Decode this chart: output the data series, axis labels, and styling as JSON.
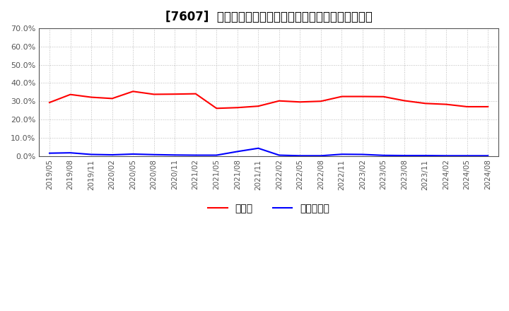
{
  "title": "[7607]  現預金、有利子負債の総資産に対する比率の推移",
  "title_fontsize": 12,
  "legend_labels": [
    "現預金",
    "有利子負債"
  ],
  "line_colors": [
    "#ff0000",
    "#0000ff"
  ],
  "ylim": [
    0.0,
    0.7
  ],
  "yticks": [
    0.0,
    0.1,
    0.2,
    0.3,
    0.4,
    0.5,
    0.6,
    0.7
  ],
  "background_color": "#ffffff",
  "plot_bg_color": "#ffffff",
  "grid_color": "#bbbbbb",
  "dates": [
    "2019/05",
    "2019/08",
    "2019/11",
    "2020/02",
    "2020/05",
    "2020/08",
    "2020/11",
    "2021/02",
    "2021/05",
    "2021/08",
    "2021/11",
    "2022/02",
    "2022/05",
    "2022/08",
    "2022/11",
    "2023/02",
    "2023/05",
    "2023/08",
    "2023/11",
    "2024/02",
    "2024/05",
    "2024/08"
  ],
  "cash_ratio": [
    0.293,
    0.337,
    0.322,
    0.315,
    0.354,
    0.338,
    0.339,
    0.341,
    0.261,
    0.265,
    0.273,
    0.302,
    0.296,
    0.3,
    0.326,
    0.326,
    0.325,
    0.303,
    0.288,
    0.283,
    0.27,
    0.27
  ],
  "debt_ratio": [
    0.015,
    0.017,
    0.008,
    0.006,
    0.01,
    0.007,
    0.005,
    0.004,
    0.004,
    0.024,
    0.042,
    0.004,
    0.001,
    0.001,
    0.009,
    0.008,
    0.003,
    0.002,
    0.002,
    0.001,
    0.001,
    0.001
  ],
  "tick_label_color": "#555555",
  "spine_color": "#555555"
}
